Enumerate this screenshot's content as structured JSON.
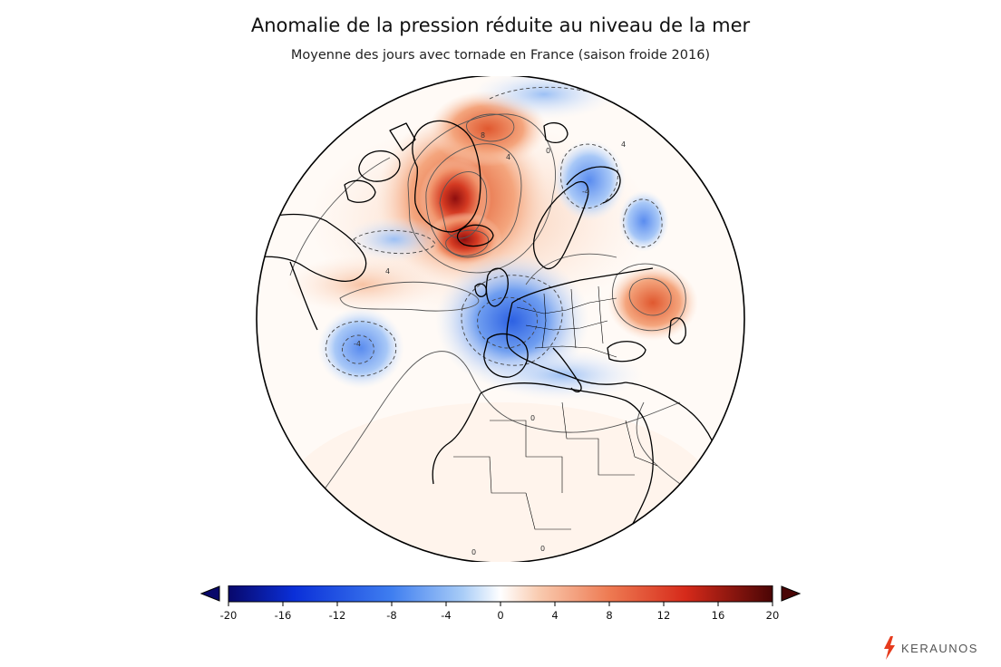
{
  "header": {
    "title": "Anomalie de la pression réduite au niveau de la mer",
    "subtitle": "Moyenne des jours avec tornade en France (saison froide 2016)"
  },
  "map": {
    "projection": "orthographic",
    "center": "Europe / North Atlantic",
    "contour_labels": [
      "8",
      "4",
      "4",
      "4",
      "-4",
      "0",
      "-4",
      "0",
      "0",
      "0"
    ]
  },
  "colorbar": {
    "min": -20,
    "max": 20,
    "ticks": [
      "-20",
      "-16",
      "-12",
      "-8",
      "-4",
      "0",
      "4",
      "8",
      "12",
      "16",
      "20"
    ],
    "extend": "both",
    "colors": [
      "#08086b",
      "#0a2fd8",
      "#3f7ef0",
      "#9cc4f6",
      "#ffffff",
      "#f7c2a2",
      "#ee7a52",
      "#d62a1a",
      "#8a0a0a",
      "#4a0505"
    ]
  },
  "brand": {
    "name": "KERAUNOS",
    "accent": "#e63b1d"
  }
}
